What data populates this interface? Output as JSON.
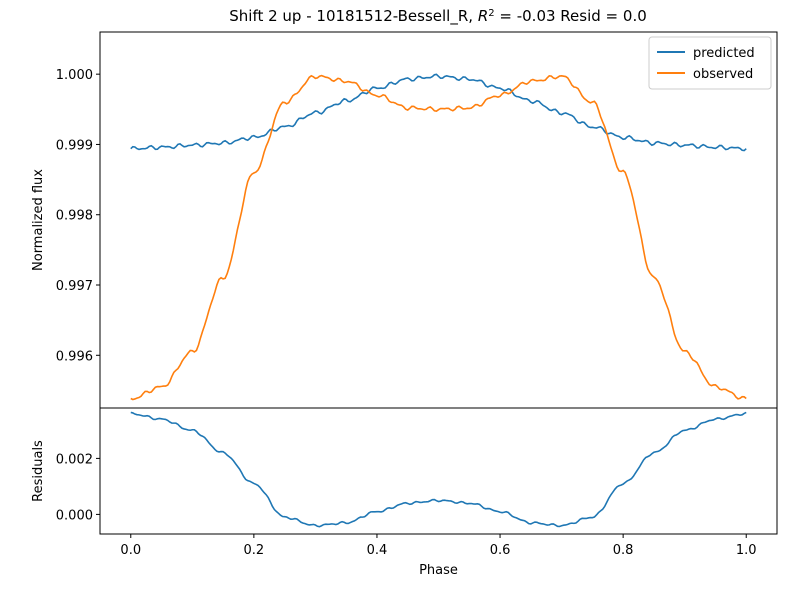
{
  "title": {
    "prefix": "Shift 2 up - 10181512-Bessell_R, ",
    "r_symbol": "R",
    "r_exponent": "2",
    "suffix": " = -0.03 Resid = 0.0"
  },
  "chart_data": [
    {
      "type": "line",
      "panel": "top",
      "xlabel": "",
      "ylabel": "Normalized flux",
      "xlim": [
        -0.05,
        1.05
      ],
      "ylim": [
        0.99525,
        1.0006
      ],
      "yticks": [
        0.996,
        0.997,
        0.998,
        0.999,
        1.0
      ],
      "ytick_labels": [
        "0.996",
        "0.997",
        "0.998",
        "0.999",
        "1.000"
      ],
      "legend_position": "top-right",
      "x": [
        0.0,
        0.05,
        0.1,
        0.15,
        0.2,
        0.25,
        0.3,
        0.35,
        0.4,
        0.45,
        0.5,
        0.55,
        0.6,
        0.65,
        0.7,
        0.75,
        0.8,
        0.85,
        0.9,
        0.95,
        1.0
      ],
      "series": [
        {
          "name": "predicted",
          "color": "#1f77b4",
          "values": [
            0.99894,
            0.99896,
            0.99899,
            0.99902,
            0.9991,
            0.99925,
            0.99945,
            0.99962,
            0.9998,
            0.99993,
            0.99997,
            0.99993,
            0.9998,
            0.99962,
            0.99945,
            0.99925,
            0.9991,
            0.99902,
            0.99899,
            0.99896,
            0.99894
          ]
        },
        {
          "name": "observed",
          "color": "#ff7f0e",
          "values": [
            0.99538,
            0.99555,
            0.99605,
            0.9971,
            0.9986,
            0.9996,
            0.99997,
            0.9999,
            0.9997,
            0.99952,
            0.9995,
            0.99952,
            0.9997,
            0.9999,
            0.99997,
            0.9996,
            0.9986,
            0.9971,
            0.99605,
            0.99555,
            0.99538
          ]
        }
      ]
    },
    {
      "type": "line",
      "panel": "bottom",
      "xlabel": "Phase",
      "ylabel": "Residuals",
      "xlim": [
        -0.05,
        1.05
      ],
      "ylim": [
        -0.0007,
        0.0038
      ],
      "xticks": [
        0.0,
        0.2,
        0.4,
        0.6,
        0.8,
        1.0
      ],
      "xtick_labels": [
        "0.0",
        "0.2",
        "0.4",
        "0.6",
        "0.8",
        "1.0"
      ],
      "yticks": [
        0.0,
        0.002
      ],
      "ytick_labels": [
        "0.000",
        "0.002"
      ],
      "x": [
        0.0,
        0.05,
        0.1,
        0.15,
        0.2,
        0.25,
        0.3,
        0.35,
        0.4,
        0.45,
        0.5,
        0.55,
        0.6,
        0.65,
        0.7,
        0.75,
        0.8,
        0.85,
        0.9,
        0.95,
        1.0
      ],
      "series": [
        {
          "name": "",
          "color": "#1f77b4",
          "values": [
            0.0036,
            0.0034,
            0.003,
            0.0022,
            0.0011,
            -0.0001,
            -0.0004,
            -0.0003,
            0.0001,
            0.0004,
            0.0005,
            0.0004,
            0.0001,
            -0.0003,
            -0.0004,
            -0.0001,
            0.0011,
            0.0022,
            0.003,
            0.0034,
            0.0036
          ]
        }
      ]
    }
  ]
}
